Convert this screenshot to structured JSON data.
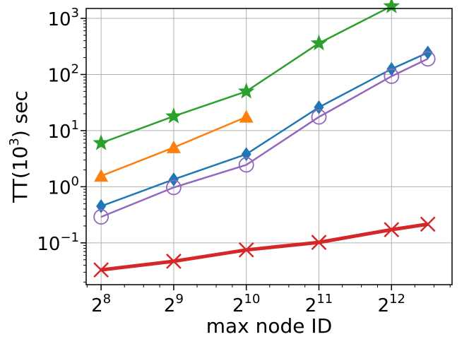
{
  "chart_data": {
    "type": "line",
    "xlabel": "max node ID",
    "ylabel": "TT(10^3) sec",
    "ylabel_parts": {
      "pre": "TT(10",
      "sup": "3",
      "post": ") sec"
    },
    "x_scale": "log2",
    "y_scale": "log10",
    "xlim": [
      222,
      7300
    ],
    "ylim": [
      0.018,
      1500
    ],
    "grid": true,
    "legend": "none",
    "x_ticks": [
      {
        "value": 256,
        "base": "2",
        "exp": "8"
      },
      {
        "value": 512,
        "base": "2",
        "exp": "9"
      },
      {
        "value": 1024,
        "base": "2",
        "exp": "10"
      },
      {
        "value": 2048,
        "base": "2",
        "exp": "11"
      },
      {
        "value": 4096,
        "base": "2",
        "exp": "12"
      }
    ],
    "y_ticks": [
      {
        "value": 0.1,
        "base": "10",
        "exp": "−1"
      },
      {
        "value": 1,
        "base": "10",
        "exp": "0"
      },
      {
        "value": 10,
        "base": "10",
        "exp": "1"
      },
      {
        "value": 100,
        "base": "10",
        "exp": "2"
      },
      {
        "value": 1000,
        "base": "10",
        "exp": "3"
      }
    ],
    "series": [
      {
        "color": "#2ca02c",
        "marker": "star",
        "line_width": 2.5,
        "x": [
          256,
          512,
          1024,
          2048,
          4096
        ],
        "y": [
          6,
          18,
          50,
          360,
          1650
        ]
      },
      {
        "color": "#ff7f0e",
        "marker": "triangle",
        "line_width": 2.5,
        "x": [
          256,
          512,
          1024
        ],
        "y": [
          1.55,
          5.0,
          17.5
        ]
      },
      {
        "color": "#1f77b4",
        "marker": "diamond",
        "line_width": 2.5,
        "x": [
          256,
          512,
          1024,
          2048,
          4096,
          5793
        ],
        "y": [
          0.45,
          1.35,
          3.8,
          26,
          125,
          245
        ]
      },
      {
        "color": "#9467bd",
        "marker": "circle-open",
        "line_width": 2.5,
        "x": [
          256,
          512,
          1024,
          2048,
          4096,
          5793
        ],
        "y": [
          0.29,
          0.97,
          2.45,
          17.5,
          93,
          190
        ]
      },
      {
        "color": "#d62728",
        "marker": "x",
        "line_width": 5,
        "x": [
          256,
          512,
          1024,
          2048,
          4096,
          5793
        ],
        "y": [
          0.033,
          0.047,
          0.075,
          0.102,
          0.172,
          0.215
        ]
      }
    ]
  }
}
